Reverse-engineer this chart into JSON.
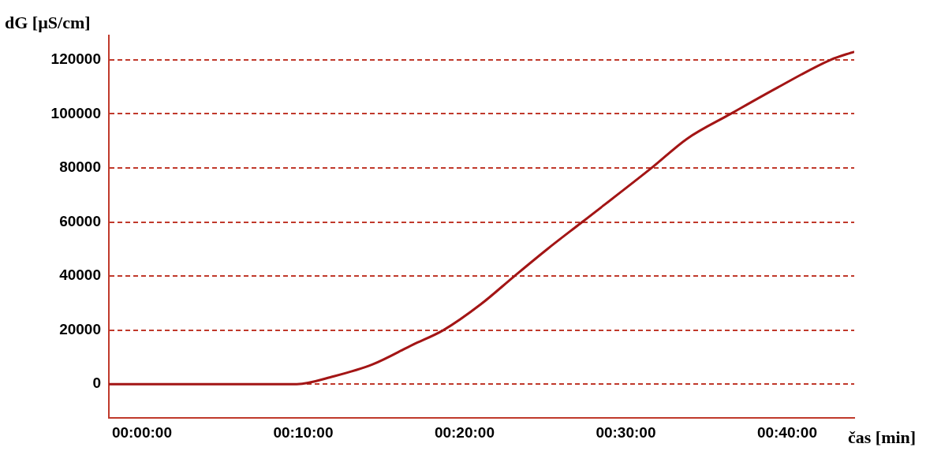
{
  "chart_data": {
    "type": "line",
    "xlabel": "čas [min]",
    "ylabel": "dG [µS/cm]",
    "x": [
      -2.05,
      0,
      5,
      9.6,
      11.9,
      14.3,
      16.8,
      18.7,
      21,
      23.1,
      25.1,
      27.3,
      31.6,
      33.8,
      36.5,
      39.4,
      42.7,
      44.16
    ],
    "series": [
      {
        "color": "#a31515",
        "values": [
          0,
          0,
          0,
          0,
          2900,
          7300,
          14600,
          20000,
          29500,
          40000,
          49800,
          60000,
          80000,
          90800,
          100000,
          109700,
          120000,
          123000
        ]
      }
    ],
    "xlim": [
      -2.05,
      44.16
    ],
    "xticks": [
      {
        "value": 0,
        "label": "00:00:00"
      },
      {
        "value": 10,
        "label": "00:10:00"
      },
      {
        "value": 20,
        "label": "00:20:00"
      },
      {
        "value": 30,
        "label": "00:30:00"
      },
      {
        "value": 40,
        "label": "00:40:00"
      }
    ],
    "ylim": [
      -12500,
      129000
    ],
    "yticks": [
      0,
      20000,
      40000,
      60000,
      80000,
      100000,
      120000
    ],
    "grid": "y",
    "line_style": "solid",
    "marker": "none",
    "legend": false
  }
}
